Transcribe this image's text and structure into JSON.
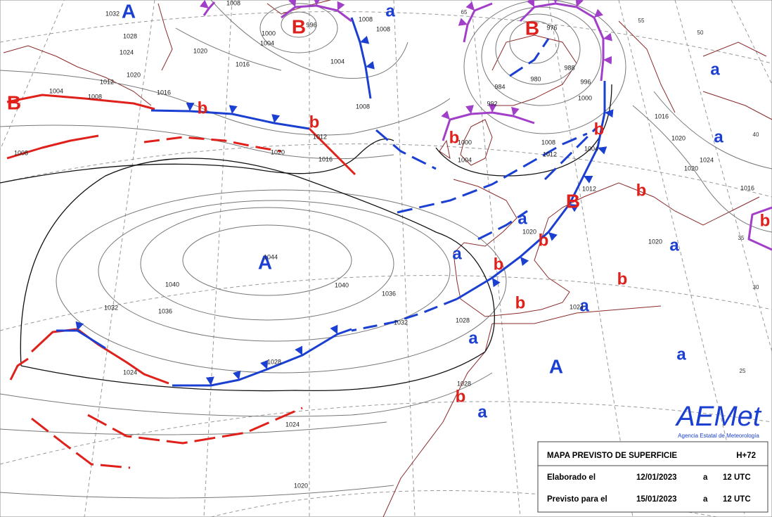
{
  "map": {
    "centers": [
      "B",
      "B",
      "B",
      "B",
      "b",
      "b",
      "b",
      "b",
      "b",
      "b",
      "b",
      "b",
      "b",
      "b",
      "b",
      "A",
      "A",
      "A",
      "a",
      "a",
      "a",
      "a",
      "a",
      "a",
      "a",
      "a",
      "a",
      "a"
    ],
    "isobar_labels": [
      "1028",
      "1020",
      "1016",
      "1012",
      "1008",
      "1004",
      "1024",
      "1020",
      "1016",
      "1032",
      "1008",
      "1000",
      "1004",
      "996",
      "1004",
      "1008",
      "1008",
      "1008",
      "976",
      "984",
      "980",
      "988",
      "992",
      "996",
      "1000",
      "1004",
      "1008",
      "1012",
      "1000",
      "1004",
      "1012",
      "1016",
      "1020",
      "1012",
      "1020",
      "1016",
      "1020",
      "1020",
      "1024",
      "1016",
      "1020",
      "1044",
      "1040",
      "1040",
      "1036",
      "1036",
      "1032",
      "1032",
      "1028",
      "1028",
      "1024",
      "1020",
      "1028",
      "1024",
      "1024",
      "1008"
    ],
    "lat_labels": [
      "65",
      "55",
      "50",
      "40",
      "35",
      "30",
      "25"
    ]
  },
  "info_box": {
    "title": "MAPA PREVISTO DE SUPERFICIE",
    "range": "H+72",
    "rows": [
      [
        "Elaborado el",
        "12/01/2023",
        "a",
        "12 UTC"
      ],
      [
        "Previsto para el",
        "15/01/2023",
        "a",
        "12 UTC"
      ]
    ]
  },
  "logo": {
    "name": "AEMet",
    "subtitle": "Agencia Estatal de Meteorología"
  }
}
